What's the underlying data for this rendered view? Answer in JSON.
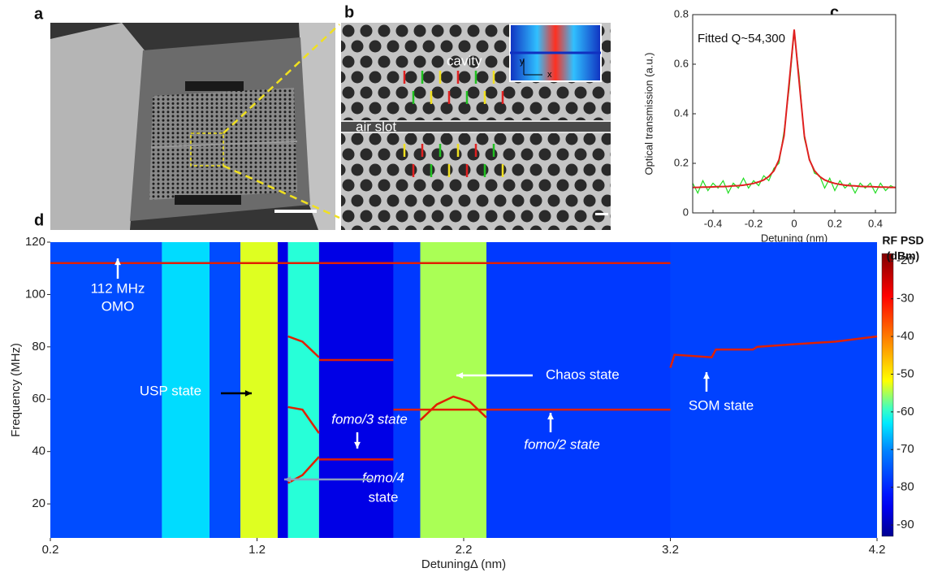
{
  "panel_labels": [
    "a",
    "b",
    "c",
    "d"
  ],
  "panel_b": {
    "labels": [
      "cavity",
      "air slot"
    ],
    "inset_axes": [
      "y",
      "x"
    ]
  },
  "chart_data": [
    {
      "type": "line",
      "ylabel": "Optical transmission (a.u.)",
      "xlabel": "Detuning (nm)",
      "annotation": "Fitted Q~54,300",
      "x": [
        -0.5,
        -0.475,
        -0.45,
        -0.425,
        -0.4,
        -0.375,
        -0.35,
        -0.325,
        -0.3,
        -0.275,
        -0.25,
        -0.225,
        -0.2,
        -0.175,
        -0.15,
        -0.125,
        -0.1,
        -0.075,
        -0.05,
        -0.025,
        0,
        0.025,
        0.05,
        0.075,
        0.1,
        0.125,
        0.15,
        0.175,
        0.2,
        0.225,
        0.25,
        0.275,
        0.3,
        0.325,
        0.35,
        0.375,
        0.4,
        0.425,
        0.45,
        0.475,
        0.5
      ],
      "xlim": [
        -0.5,
        0.5
      ],
      "ylim": [
        0,
        0.8
      ],
      "xticks": [
        -0.4,
        -0.2,
        0,
        0.2,
        0.4
      ],
      "yticks": [
        0,
        0.2,
        0.4,
        0.6,
        0.8
      ],
      "series": [
        {
          "color": "#22dd22",
          "values": [
            0.12,
            0.08,
            0.13,
            0.09,
            0.12,
            0.1,
            0.13,
            0.08,
            0.12,
            0.1,
            0.14,
            0.1,
            0.13,
            0.11,
            0.15,
            0.13,
            0.18,
            0.2,
            0.33,
            0.5,
            0.73,
            0.55,
            0.3,
            0.22,
            0.16,
            0.15,
            0.1,
            0.14,
            0.09,
            0.13,
            0.1,
            0.12,
            0.08,
            0.12,
            0.1,
            0.12,
            0.08,
            0.12,
            0.09,
            0.11,
            0.1
          ]
        },
        {
          "color": "#e02020",
          "values": [
            0.103,
            0.103,
            0.104,
            0.104,
            0.105,
            0.106,
            0.106,
            0.107,
            0.109,
            0.11,
            0.112,
            0.115,
            0.119,
            0.125,
            0.133,
            0.147,
            0.17,
            0.214,
            0.311,
            0.524,
            0.74,
            0.524,
            0.311,
            0.214,
            0.17,
            0.147,
            0.133,
            0.125,
            0.119,
            0.115,
            0.112,
            0.11,
            0.109,
            0.107,
            0.106,
            0.106,
            0.105,
            0.104,
            0.104,
            0.103,
            0.103
          ]
        }
      ]
    },
    {
      "type": "heatmap",
      "ylabel": "Frequency (MHz)",
      "xlabel": "DetuningΔ (nm)",
      "xlim": [
        0.2,
        4.2
      ],
      "ylim": [
        7,
        120
      ],
      "xticks": [
        0.2,
        1.2,
        2.2,
        3.2,
        4.2
      ],
      "yticks": [
        20,
        40,
        60,
        80,
        100,
        120
      ],
      "x_bins": [
        0.2,
        0.74,
        0.97,
        1.12,
        1.3,
        1.35,
        1.5,
        1.86,
        1.99,
        2.31,
        3.2,
        4.2
      ],
      "levels": [
        -76,
        -64,
        -76,
        -53,
        -86,
        -60,
        -86,
        -78,
        -55,
        -78,
        -77
      ],
      "colorbar_label": [
        "RF PSD",
        "(dBm)"
      ],
      "clim": [
        -93,
        -18
      ],
      "cticks": [
        -20,
        -30,
        -40,
        -50,
        -60,
        -70,
        -80,
        -90
      ],
      "series": [
        {
          "color": "#e02000",
          "x": [
            0.2,
            3.2
          ],
          "values": [
            112,
            112
          ]
        },
        {
          "color": "#e02000",
          "x": [
            1.5,
            1.86
          ],
          "values": [
            75,
            75
          ]
        },
        {
          "color": "#e02000",
          "x": [
            1.5,
            1.86
          ],
          "values": [
            37,
            37
          ]
        },
        {
          "color": "#e02000",
          "x": [
            1.86,
            3.2
          ],
          "values": [
            56,
            56
          ]
        },
        {
          "color": "#e02000",
          "x": [
            1.35,
            1.42,
            1.5
          ],
          "values": [
            84,
            82,
            76
          ]
        },
        {
          "color": "#e02000",
          "x": [
            1.35,
            1.42,
            1.5
          ],
          "values": [
            57,
            56,
            47
          ]
        },
        {
          "color": "#e02000",
          "x": [
            1.35,
            1.42,
            1.5
          ],
          "values": [
            28,
            31,
            38
          ]
        },
        {
          "color": "#e02000",
          "x": [
            1.99,
            2.07,
            2.15,
            2.23,
            2.31
          ],
          "values": [
            52,
            58,
            61,
            59,
            53
          ]
        },
        {
          "color": "#e02000",
          "x": [
            3.2,
            3.22,
            3.4,
            3.42,
            3.6,
            3.62,
            3.8,
            4.0,
            4.2
          ],
          "values": [
            72,
            77,
            76,
            79,
            79,
            80,
            81,
            82,
            84
          ]
        }
      ],
      "annotations": [
        "112 MHz",
        "OMO",
        "USP state",
        "Chaos state",
        "SOM state",
        "fomo/3  state",
        "fomo/2  state",
        "fomo/4",
        "state"
      ]
    }
  ]
}
